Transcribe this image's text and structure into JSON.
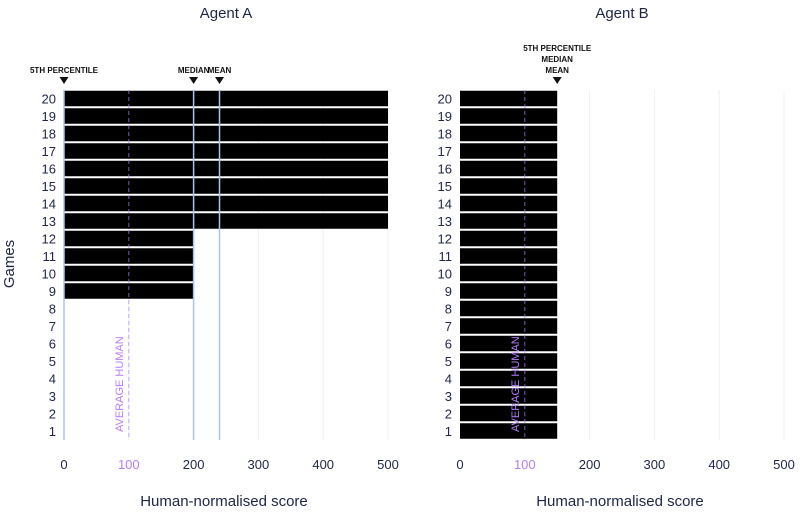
{
  "chart_data": [
    {
      "type": "bar",
      "orientation": "horizontal",
      "title": "Agent A",
      "xlabel": "Human-normalised score",
      "ylabel": "Games",
      "xlim": [
        0,
        500
      ],
      "xticks": [
        "0",
        "100",
        "200",
        "300",
        "400",
        "500"
      ],
      "categories": [
        "1",
        "2",
        "3",
        "4",
        "5",
        "6",
        "7",
        "8",
        "9",
        "10",
        "11",
        "12",
        "13",
        "14",
        "15",
        "16",
        "17",
        "18",
        "19",
        "20"
      ],
      "values": [
        0,
        0,
        0,
        0,
        0,
        0,
        0,
        0,
        200,
        200,
        200,
        200,
        500,
        500,
        500,
        500,
        500,
        500,
        500,
        500
      ],
      "markers": [
        {
          "label": "5TH PERCENTILE",
          "value": 0
        },
        {
          "label": "MEDIAN",
          "value": 200
        },
        {
          "label": "MEAN",
          "value": 240
        }
      ],
      "reference_line": {
        "label": "AVERAGE HUMAN",
        "value": 100
      }
    },
    {
      "type": "bar",
      "orientation": "horizontal",
      "title": "Agent B",
      "xlabel": "Human-normalised score",
      "ylabel": "",
      "xlim": [
        0,
        500
      ],
      "xticks": [
        "0",
        "100",
        "200",
        "300",
        "400",
        "500"
      ],
      "categories": [
        "1",
        "2",
        "3",
        "4",
        "5",
        "6",
        "7",
        "8",
        "9",
        "10",
        "11",
        "12",
        "13",
        "14",
        "15",
        "16",
        "17",
        "18",
        "19",
        "20"
      ],
      "values": [
        150,
        150,
        150,
        150,
        150,
        150,
        150,
        150,
        150,
        150,
        150,
        150,
        150,
        150,
        150,
        150,
        150,
        150,
        150,
        150
      ],
      "markers": [
        {
          "label": "5TH PERCENTILE\nMEDIAN\nMEAN",
          "value": 150
        }
      ],
      "reference_line": {
        "label": "AVERAGE HUMAN",
        "value": 100
      }
    }
  ],
  "colors": {
    "bar": "#000000",
    "text": "#1e2547",
    "average_human": "#b57cff",
    "marker_line": "#aac4ef",
    "grid": "#eef0f4"
  }
}
